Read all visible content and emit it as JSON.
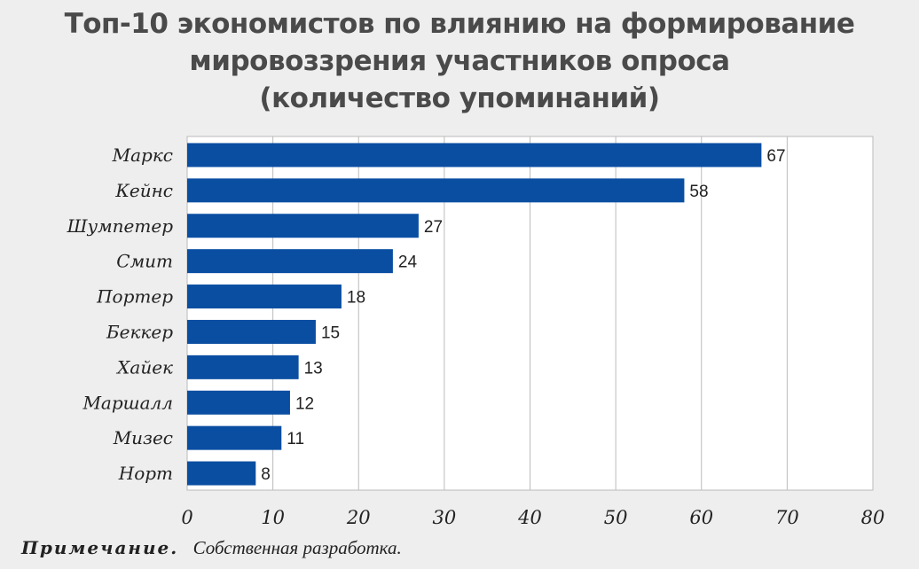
{
  "title_lines": [
    "Топ-10 экономистов по влиянию на формирование",
    "мировоззрения участников опроса",
    "(количество упоминаний)"
  ],
  "note": {
    "label": "Примечание.",
    "text": "Собственная разработка."
  },
  "colors": {
    "bar": "#0a4ea2",
    "plot_background": "#ffffff",
    "page_background": "#eeeeee",
    "grid": "#bbbbbb"
  },
  "chart_data": {
    "type": "bar",
    "orientation": "horizontal",
    "title": "Топ-10 экономистов по влиянию на формирование мировоззрения участников опроса (количество упоминаний)",
    "categories": [
      "Маркс",
      "Кейнс",
      "Шумпетер",
      "Смит",
      "Портер",
      "Беккер",
      "Хайек",
      "Маршалл",
      "Мизес",
      "Норт"
    ],
    "values": [
      67,
      58,
      27,
      24,
      18,
      15,
      13,
      12,
      11,
      8
    ],
    "xlim": [
      0,
      80
    ],
    "xticks": [
      0,
      10,
      20,
      30,
      40,
      50,
      60,
      70,
      80
    ],
    "grid": true,
    "data_labels": true
  }
}
